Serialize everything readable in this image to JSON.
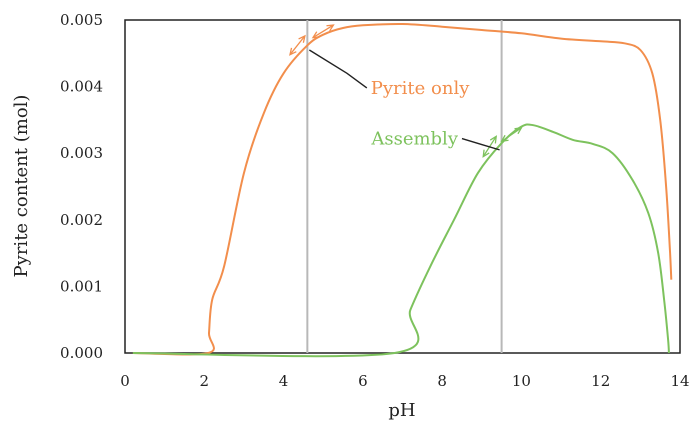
{
  "chart_data": {
    "type": "line",
    "title": "",
    "xlabel": "pH",
    "ylabel": "Pyrite content (mol)",
    "xlim": [
      0,
      14
    ],
    "ylim": [
      0,
      0.005
    ],
    "x_ticks": [
      "0",
      "2",
      "4",
      "6",
      "8",
      "10",
      "12",
      "14"
    ],
    "y_ticks": [
      "0.000",
      "0.001",
      "0.002",
      "0.003",
      "0.004",
      "0.005"
    ],
    "grid": false,
    "vlines": [
      4.6,
      9.5
    ],
    "series": [
      {
        "name": "Pyrite only",
        "color": "#f28e4c",
        "points": [
          [
            0.2,
            0.0
          ],
          [
            2.1,
            0.0
          ],
          [
            2.12,
            0.0003
          ],
          [
            2.2,
            0.0008
          ],
          [
            2.5,
            0.0013
          ],
          [
            3.0,
            0.0027
          ],
          [
            3.5,
            0.0036
          ],
          [
            4.0,
            0.0042
          ],
          [
            4.6,
            0.00462
          ],
          [
            5.0,
            0.00478
          ],
          [
            5.5,
            0.00488
          ],
          [
            6.0,
            0.00492
          ],
          [
            7.0,
            0.00494
          ],
          [
            8.0,
            0.0049
          ],
          [
            9.0,
            0.00485
          ],
          [
            10.0,
            0.0048
          ],
          [
            11.0,
            0.00472
          ],
          [
            12.0,
            0.00468
          ],
          [
            12.6,
            0.00465
          ],
          [
            13.0,
            0.00455
          ],
          [
            13.3,
            0.0042
          ],
          [
            13.5,
            0.0035
          ],
          [
            13.65,
            0.0025
          ],
          [
            13.75,
            0.0015
          ],
          [
            13.78,
            0.0011
          ]
        ]
      },
      {
        "name": "Assembly",
        "color": "#7dc25d",
        "points": [
          [
            0.2,
            0.0
          ],
          [
            6.8,
            0.0
          ],
          [
            7.2,
            0.00065
          ],
          [
            7.7,
            0.0013
          ],
          [
            8.3,
            0.002
          ],
          [
            8.9,
            0.0027
          ],
          [
            9.5,
            0.00315
          ],
          [
            10.0,
            0.0034
          ],
          [
            10.3,
            0.00342
          ],
          [
            10.8,
            0.00332
          ],
          [
            11.3,
            0.0032
          ],
          [
            11.8,
            0.00314
          ],
          [
            12.3,
            0.003
          ],
          [
            12.8,
            0.0026
          ],
          [
            13.2,
            0.0021
          ],
          [
            13.45,
            0.0015
          ],
          [
            13.6,
            0.0008
          ],
          [
            13.7,
            0.0002
          ],
          [
            13.72,
            0.0
          ]
        ]
      }
    ]
  },
  "annotations": {
    "pyrite_label": "Pyrite only",
    "assembly_label": "Assembly"
  }
}
